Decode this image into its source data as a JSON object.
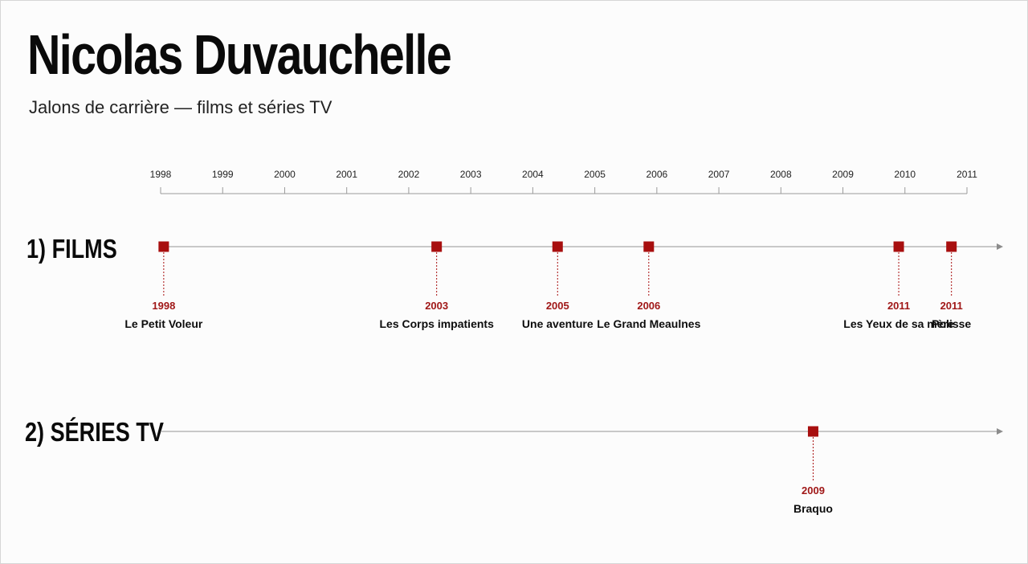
{
  "title": "Nicolas Duvauchelle",
  "subtitle": "Jalons de carrière — films et séries TV",
  "axis": {
    "years": [
      "1998",
      "1999",
      "2000",
      "2001",
      "2002",
      "2003",
      "2004",
      "2005",
      "2006",
      "2007",
      "2008",
      "2009",
      "2010",
      "2011"
    ]
  },
  "lanes": [
    {
      "id": "films",
      "label": "1) FILMS",
      "events": [
        {
          "year": "1998",
          "date": 1998.05,
          "title": "Le Petit Voleur"
        },
        {
          "year": "2003",
          "date": 2002.45,
          "title": "Les Corps impatients"
        },
        {
          "year": "2005",
          "date": 2004.4,
          "title": "Une aventure"
        },
        {
          "year": "2006",
          "date": 2005.87,
          "title": "Le Grand Meaulnes"
        },
        {
          "year": "2011",
          "date": 2009.9,
          "title": "Les Yeux de sa mère"
        },
        {
          "year": "2011",
          "date": 2010.75,
          "title": "Polisse"
        }
      ]
    },
    {
      "id": "tv",
      "label": "2) SÉRIES TV",
      "events": [
        {
          "year": "2009",
          "date": 2008.52,
          "title": "Braquo"
        }
      ]
    }
  ],
  "colors": {
    "marker": "#a80f0f",
    "year_text": "#a01818",
    "axis": "#9a9a9a",
    "lane_line": "#a8a8a8"
  }
}
